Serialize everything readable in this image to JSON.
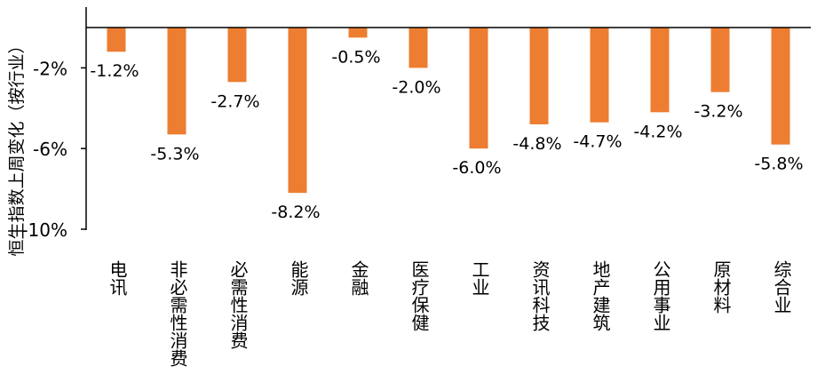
{
  "chart_data": {
    "type": "bar",
    "title": "",
    "xlabel": "",
    "ylabel": "恒生指数上周变化（按行业）",
    "categories": [
      "电讯",
      "非必需性消费",
      "必需性消费",
      "能源",
      "金融",
      "医疗保健",
      "工业",
      "资讯科技",
      "地产建筑",
      "公用事业",
      "原材料",
      "综合业"
    ],
    "values": [
      -1.2,
      -5.3,
      -2.7,
      -8.2,
      -0.5,
      -2.0,
      -6.0,
      -4.8,
      -4.7,
      -4.2,
      -3.2,
      -5.8
    ],
    "data_labels": [
      "-1.2%",
      "-5.3%",
      "-2.7%",
      "-8.2%",
      "-0.5%",
      "-2.0%",
      "-6.0%",
      "-4.8%",
      "-4.7%",
      "-4.2%",
      "-3.2%",
      "-5.8%"
    ],
    "y_ticks": [
      -2,
      -6,
      -10
    ],
    "y_tick_labels": [
      "-2%",
      "-6%",
      "-10%"
    ],
    "ylim": [
      -10,
      0
    ],
    "bar_color": "#ED7D31",
    "axis_color": "#000000",
    "grid": false,
    "legend": "none"
  }
}
